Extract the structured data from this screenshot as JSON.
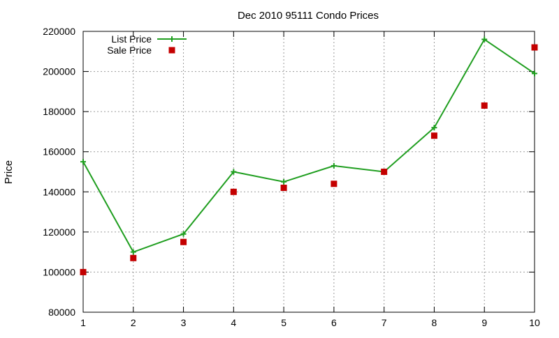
{
  "chart_data": {
    "type": "line",
    "title": "Dec 2010 95111 Condo Prices",
    "xlabel": "",
    "ylabel": "Price",
    "xlim": [
      1,
      10
    ],
    "ylim": [
      80000,
      220000
    ],
    "x_ticks": [
      1,
      2,
      3,
      4,
      5,
      6,
      7,
      8,
      9,
      10
    ],
    "y_ticks": [
      80000,
      100000,
      120000,
      140000,
      160000,
      180000,
      200000,
      220000
    ],
    "grid": true,
    "legend_position": "top-left",
    "series": [
      {
        "name": "List Price",
        "type": "line",
        "marker": "plus",
        "color": "#1f9e1f",
        "x": [
          1,
          2,
          3,
          4,
          5,
          6,
          7,
          8,
          9,
          10
        ],
        "y": [
          155000,
          110000,
          119000,
          150000,
          145000,
          153000,
          150000,
          172000,
          216000,
          199000
        ]
      },
      {
        "name": "Sale Price",
        "type": "scatter",
        "marker": "square",
        "color": "#c40000",
        "x": [
          1,
          2,
          3,
          4,
          5,
          6,
          7,
          8,
          9,
          10
        ],
        "y": [
          100000,
          107000,
          115000,
          140000,
          142000,
          144000,
          150000,
          168000,
          183000,
          212000
        ]
      }
    ]
  }
}
